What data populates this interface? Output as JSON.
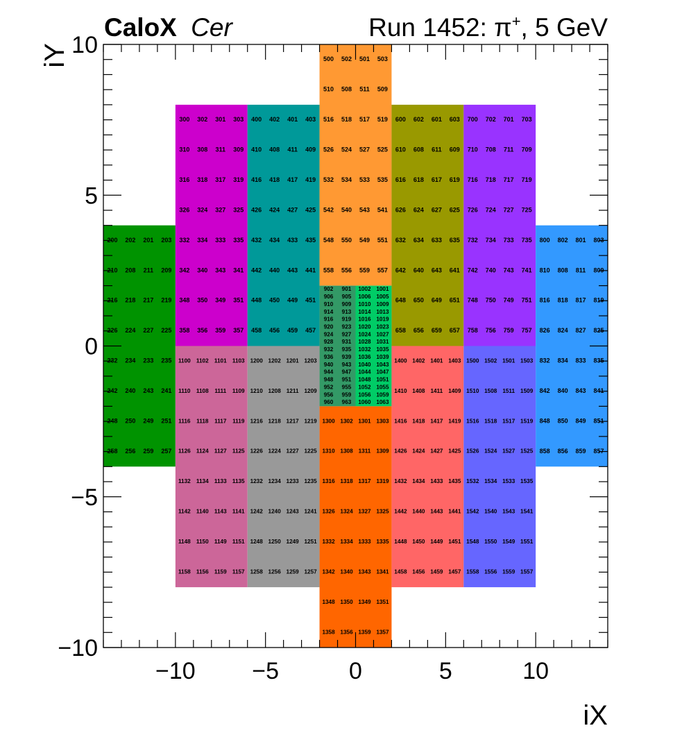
{
  "chart_data": {
    "type": "heatmap",
    "title_left_bold": "CaloX",
    "title_left_italic": "Cer",
    "title_right_prefix": "Run 1452: π",
    "title_right_sup": "+",
    "title_right_suffix": ", 5 GeV",
    "xlabel": "iX",
    "ylabel": "iY",
    "xlim": [
      -14,
      14
    ],
    "ylim": [
      -10,
      10
    ],
    "xticks": [
      -10,
      -5,
      0,
      5,
      10
    ],
    "xtick_labels": [
      "−10",
      "−5",
      "0",
      "5",
      "10"
    ],
    "yticks": [
      -10,
      -5,
      0,
      5,
      10
    ],
    "ytick_labels": [
      "−10",
      "−5",
      "0",
      "5",
      "10"
    ],
    "blocks": [
      {
        "x": [
          -14,
          -10
        ],
        "y": [
          -4,
          4
        ],
        "color": "#009300"
      },
      {
        "x": [
          -10,
          -6
        ],
        "y": [
          0,
          8
        ],
        "color": "#cc00cc"
      },
      {
        "x": [
          -6,
          -2
        ],
        "y": [
          0,
          8
        ],
        "color": "#009999"
      },
      {
        "x": [
          -2,
          2
        ],
        "y": [
          2,
          10
        ],
        "color": "#ff9933"
      },
      {
        "x": [
          2,
          6
        ],
        "y": [
          0,
          8
        ],
        "color": "#999900"
      },
      {
        "x": [
          6,
          10
        ],
        "y": [
          0,
          8
        ],
        "color": "#9933ff"
      },
      {
        "x": [
          10,
          14
        ],
        "y": [
          -4,
          4
        ],
        "color": "#3399ff"
      },
      {
        "x": [
          -10,
          -6
        ],
        "y": [
          -8,
          0
        ],
        "color": "#cc6699"
      },
      {
        "x": [
          -6,
          -2
        ],
        "y": [
          -8,
          0
        ],
        "color": "#999999"
      },
      {
        "x": [
          -2,
          0
        ],
        "y": [
          -2,
          2
        ],
        "color": "#339966"
      },
      {
        "x": [
          0,
          2
        ],
        "y": [
          -2,
          2
        ],
        "color": "#00cc66"
      },
      {
        "x": [
          -2,
          2
        ],
        "y": [
          -10,
          -2
        ],
        "color": "#ff6600"
      },
      {
        "x": [
          2,
          6
        ],
        "y": [
          -8,
          0
        ],
        "color": "#ff6666"
      },
      {
        "x": [
          6,
          10
        ],
        "y": [
          -8,
          0
        ],
        "color": "#6666ff"
      }
    ],
    "cell_groups": [
      {
        "x0": -14,
        "y0": -4,
        "rows": [
          [
            "258",
            "256",
            "259",
            "257"
          ],
          [
            "248",
            "250",
            "249",
            "251"
          ],
          [
            "242",
            "240",
            "243",
            "241"
          ],
          [
            "232",
            "234",
            "233",
            "235"
          ],
          [
            "226",
            "224",
            "227",
            "225"
          ],
          [
            "216",
            "218",
            "217",
            "219"
          ],
          [
            "210",
            "208",
            "211",
            "209"
          ],
          [
            "200",
            "202",
            "201",
            "203"
          ]
        ]
      },
      {
        "x0": -10,
        "y0": 0,
        "rows": [
          [
            "358",
            "356",
            "359",
            "357"
          ],
          [
            "348",
            "350",
            "349",
            "351"
          ],
          [
            "342",
            "340",
            "343",
            "341"
          ],
          [
            "332",
            "334",
            "333",
            "335"
          ],
          [
            "326",
            "324",
            "327",
            "325"
          ],
          [
            "316",
            "318",
            "317",
            "319"
          ],
          [
            "310",
            "308",
            "311",
            "309"
          ],
          [
            "300",
            "302",
            "301",
            "303"
          ]
        ]
      },
      {
        "x0": -6,
        "y0": 0,
        "rows": [
          [
            "458",
            "456",
            "459",
            "457"
          ],
          [
            "448",
            "450",
            "449",
            "451"
          ],
          [
            "442",
            "440",
            "443",
            "441"
          ],
          [
            "432",
            "434",
            "433",
            "435"
          ],
          [
            "426",
            "424",
            "427",
            "425"
          ],
          [
            "416",
            "418",
            "417",
            "419"
          ],
          [
            "410",
            "408",
            "411",
            "409"
          ],
          [
            "400",
            "402",
            "401",
            "403"
          ]
        ]
      },
      {
        "x0": -2,
        "y0": 2,
        "rows": [
          [
            "558",
            "556",
            "559",
            "557"
          ],
          [
            "548",
            "550",
            "549",
            "551"
          ],
          [
            "542",
            "540",
            "543",
            "541"
          ],
          [
            "532",
            "534",
            "533",
            "535"
          ],
          [
            "526",
            "524",
            "527",
            "525"
          ],
          [
            "516",
            "518",
            "517",
            "519"
          ],
          [
            "510",
            "508",
            "511",
            "509"
          ],
          [
            "500",
            "502",
            "501",
            "503"
          ]
        ]
      },
      {
        "x0": 2,
        "y0": 0,
        "rows": [
          [
            "658",
            "656",
            "659",
            "657"
          ],
          [
            "648",
            "650",
            "649",
            "651"
          ],
          [
            "642",
            "640",
            "643",
            "641"
          ],
          [
            "632",
            "634",
            "633",
            "635"
          ],
          [
            "626",
            "624",
            "627",
            "625"
          ],
          [
            "616",
            "618",
            "617",
            "619"
          ],
          [
            "610",
            "608",
            "611",
            "609"
          ],
          [
            "600",
            "602",
            "601",
            "603"
          ]
        ]
      },
      {
        "x0": 6,
        "y0": 0,
        "rows": [
          [
            "758",
            "756",
            "759",
            "757"
          ],
          [
            "748",
            "750",
            "749",
            "751"
          ],
          [
            "742",
            "740",
            "743",
            "741"
          ],
          [
            "732",
            "734",
            "733",
            "735"
          ],
          [
            "726",
            "724",
            "727",
            "725"
          ],
          [
            "716",
            "718",
            "717",
            "719"
          ],
          [
            "710",
            "708",
            "711",
            "709"
          ],
          [
            "700",
            "702",
            "701",
            "703"
          ]
        ]
      },
      {
        "x0": 10,
        "y0": -4,
        "rows": [
          [
            "858",
            "856",
            "859",
            "857"
          ],
          [
            "848",
            "850",
            "849",
            "851"
          ],
          [
            "842",
            "840",
            "843",
            "841"
          ],
          [
            "832",
            "834",
            "833",
            "835"
          ],
          [
            "826",
            "824",
            "827",
            "825"
          ],
          [
            "816",
            "818",
            "817",
            "819"
          ],
          [
            "810",
            "808",
            "811",
            "809"
          ],
          [
            "800",
            "802",
            "801",
            "803"
          ]
        ]
      },
      {
        "x0": -10,
        "y0": -8,
        "rows": [
          [
            "1158",
            "1156",
            "1159",
            "1157"
          ],
          [
            "1148",
            "1150",
            "1149",
            "1151"
          ],
          [
            "1142",
            "1140",
            "1143",
            "1141"
          ],
          [
            "1132",
            "1134",
            "1133",
            "1135"
          ],
          [
            "1126",
            "1124",
            "1127",
            "1125"
          ],
          [
            "1116",
            "1118",
            "1117",
            "1119"
          ],
          [
            "1110",
            "1108",
            "1111",
            "1109"
          ],
          [
            "1100",
            "1102",
            "1101",
            "1103"
          ]
        ]
      },
      {
        "x0": -6,
        "y0": -8,
        "rows": [
          [
            "1258",
            "1256",
            "1259",
            "1257"
          ],
          [
            "1248",
            "1250",
            "1249",
            "1251"
          ],
          [
            "1242",
            "1240",
            "1243",
            "1241"
          ],
          [
            "1232",
            "1234",
            "1233",
            "1235"
          ],
          [
            "1226",
            "1224",
            "1227",
            "1225"
          ],
          [
            "1216",
            "1218",
            "1217",
            "1219"
          ],
          [
            "1210",
            "1208",
            "1211",
            "1209"
          ],
          [
            "1200",
            "1202",
            "1201",
            "1203"
          ]
        ]
      },
      {
        "x0": -2,
        "y0": -10,
        "rows": [
          [
            "1358",
            "1356",
            "1359",
            "1357"
          ],
          [
            "1348",
            "1350",
            "1349",
            "1351"
          ],
          [
            "1342",
            "1340",
            "1343",
            "1341"
          ],
          [
            "1332",
            "1334",
            "1333",
            "1335"
          ],
          [
            "1326",
            "1324",
            "1327",
            "1325"
          ],
          [
            "1316",
            "1318",
            "1317",
            "1319"
          ],
          [
            "1310",
            "1308",
            "1311",
            "1309"
          ],
          [
            "1300",
            "1302",
            "1301",
            "1303"
          ]
        ]
      },
      {
        "x0": 2,
        "y0": -8,
        "rows": [
          [
            "1458",
            "1456",
            "1459",
            "1457"
          ],
          [
            "1448",
            "1450",
            "1449",
            "1451"
          ],
          [
            "1442",
            "1440",
            "1443",
            "1441"
          ],
          [
            "1432",
            "1434",
            "1433",
            "1435"
          ],
          [
            "1426",
            "1424",
            "1427",
            "1425"
          ],
          [
            "1416",
            "1418",
            "1417",
            "1419"
          ],
          [
            "1410",
            "1408",
            "1411",
            "1409"
          ],
          [
            "1400",
            "1402",
            "1401",
            "1403"
          ]
        ]
      },
      {
        "x0": 6,
        "y0": -8,
        "rows": [
          [
            "1558",
            "1556",
            "1559",
            "1557"
          ],
          [
            "1548",
            "1550",
            "1549",
            "1551"
          ],
          [
            "1542",
            "1540",
            "1543",
            "1541"
          ],
          [
            "1532",
            "1534",
            "1533",
            "1535"
          ],
          [
            "1526",
            "1524",
            "1527",
            "1525"
          ],
          [
            "1516",
            "1518",
            "1517",
            "1519"
          ],
          [
            "1510",
            "1508",
            "1511",
            "1509"
          ],
          [
            "1500",
            "1502",
            "1501",
            "1503"
          ]
        ]
      }
    ],
    "fine_group": {
      "x0": -2,
      "y0": -2,
      "cols": 4,
      "rows": [
        [
          "960",
          "963",
          "1060",
          "1063"
        ],
        [
          "956",
          "959",
          "1056",
          "1059"
        ],
        [
          "952",
          "955",
          "1052",
          "1055"
        ],
        [
          "948",
          "951",
          "1048",
          "1051"
        ],
        [
          "944",
          "947",
          "1044",
          "1047"
        ],
        [
          "940",
          "943",
          "1040",
          "1043"
        ],
        [
          "936",
          "939",
          "1036",
          "1039"
        ],
        [
          "932",
          "935",
          "1032",
          "1035"
        ],
        [
          "928",
          "931",
          "1028",
          "1031"
        ],
        [
          "924",
          "927",
          "1024",
          "1027"
        ],
        [
          "920",
          "923",
          "1020",
          "1023"
        ],
        [
          "916",
          "919",
          "1016",
          "1019"
        ],
        [
          "914",
          "913",
          "1014",
          "1013"
        ],
        [
          "910",
          "909",
          "1010",
          "1009"
        ],
        [
          "906",
          "905",
          "1006",
          "1005"
        ],
        [
          "902",
          "901",
          "1002",
          "1001"
        ]
      ]
    }
  }
}
